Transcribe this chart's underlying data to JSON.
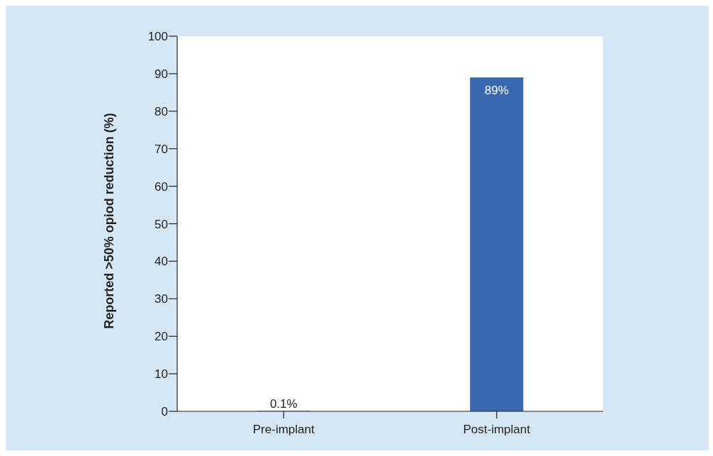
{
  "chart_data": {
    "type": "bar",
    "ylabel": "Reported >50% opiod reduction (%)",
    "categories": [
      "Pre-implant",
      "Post-implant"
    ],
    "values": [
      0.1,
      89
    ],
    "color": "#3a68b0",
    "value_labels": [
      "0.1%",
      "89%"
    ],
    "ylim": [
      0,
      100
    ],
    "yticks": [
      0,
      10,
      20,
      30,
      40,
      50,
      60,
      70,
      80,
      90,
      100
    ],
    "grid": false
  }
}
